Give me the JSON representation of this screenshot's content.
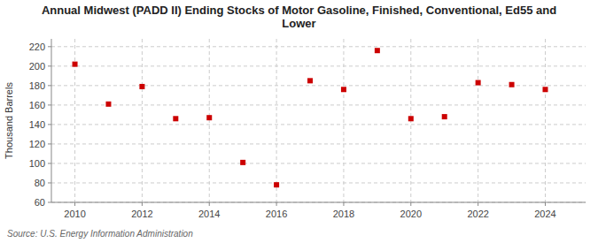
{
  "chart_data": {
    "type": "scatter",
    "title": "Annual Midwest (PADD II) Ending Stocks of Motor Gasoline, Finished, Conventional, Ed55 and\nLower",
    "y_label": "Thousand Barrels",
    "source": "Source: U.S. Energy Information Administration",
    "x": [
      2010,
      2011,
      2012,
      2013,
      2014,
      2015,
      2016,
      2017,
      2018,
      2019,
      2020,
      2021,
      2022,
      2023,
      2024
    ],
    "values": [
      202,
      161,
      179,
      146,
      147,
      101,
      78,
      185,
      176,
      216,
      146,
      148,
      183,
      181,
      176
    ],
    "color": "#cc0000",
    "marker": "square",
    "xlim": [
      2009.3,
      2025.2
    ],
    "xticks": [
      2010,
      2012,
      2014,
      2016,
      2018,
      2020,
      2022,
      2024
    ],
    "ylim": [
      60,
      228
    ],
    "yticks": [
      60,
      80,
      100,
      120,
      140,
      160,
      180,
      200,
      220
    ],
    "grid": true
  }
}
